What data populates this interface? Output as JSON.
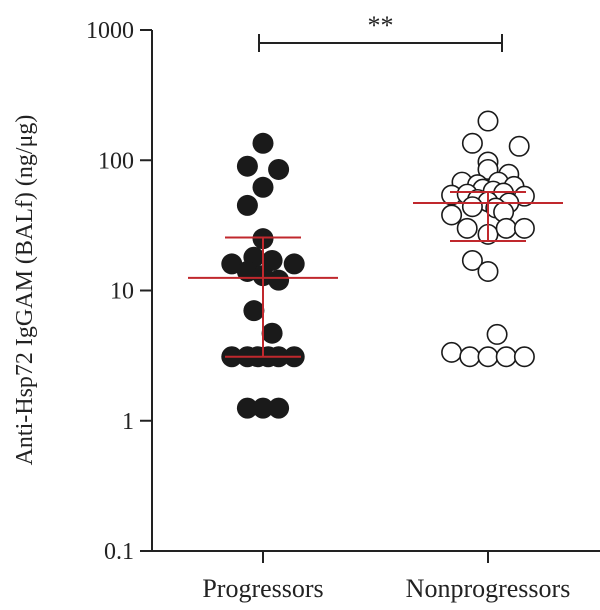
{
  "chart_data": {
    "type": "scatter",
    "ylabel": "Anti-Hsp72 IgGAM (BALf) (ng/μg)",
    "yscale": "log",
    "ylim": [
      0.1,
      1000
    ],
    "yticks": [
      {
        "value": 0.1,
        "label": "0.1"
      },
      {
        "value": 1,
        "label": "1"
      },
      {
        "value": 10,
        "label": "10"
      },
      {
        "value": 100,
        "label": "100"
      },
      {
        "value": 1000,
        "label": "1000"
      }
    ],
    "categories": [
      "Progressors",
      "Nonprogressors"
    ],
    "significance": "**",
    "summary_line_color": "#c0282d",
    "series": [
      {
        "name": "Progressors",
        "marker": "filled",
        "color": "#1a1a1a",
        "median": 12.5,
        "iqr": [
          3.1,
          25.5
        ],
        "points": [
          {
            "offset": 0.0,
            "value": 135
          },
          {
            "offset": -0.6,
            "value": 90
          },
          {
            "offset": 0.6,
            "value": 85
          },
          {
            "offset": 0.0,
            "value": 62
          },
          {
            "offset": -0.6,
            "value": 45
          },
          {
            "offset": 0.0,
            "value": 25
          },
          {
            "offset": -0.35,
            "value": 18
          },
          {
            "offset": 0.35,
            "value": 17
          },
          {
            "offset": -1.2,
            "value": 16
          },
          {
            "offset": 1.2,
            "value": 16
          },
          {
            "offset": -0.6,
            "value": 14
          },
          {
            "offset": 0.0,
            "value": 13
          },
          {
            "offset": 0.6,
            "value": 12
          },
          {
            "offset": -0.35,
            "value": 7
          },
          {
            "offset": 0.35,
            "value": 4.7
          },
          {
            "offset": -1.2,
            "value": 3.1
          },
          {
            "offset": -0.6,
            "value": 3.1
          },
          {
            "offset": -0.2,
            "value": 3.1
          },
          {
            "offset": 0.2,
            "value": 3.1
          },
          {
            "offset": 0.6,
            "value": 3.1
          },
          {
            "offset": 1.2,
            "value": 3.1
          },
          {
            "offset": -0.6,
            "value": 1.25
          },
          {
            "offset": 0.0,
            "value": 1.25
          },
          {
            "offset": 0.6,
            "value": 1.25
          }
        ]
      },
      {
        "name": "Nonprogressors",
        "marker": "open",
        "color": "#1a1a1a",
        "median": 47,
        "iqr": [
          24,
          57
        ],
        "points": [
          {
            "offset": 0.0,
            "value": 200
          },
          {
            "offset": -0.6,
            "value": 135
          },
          {
            "offset": 1.2,
            "value": 128
          },
          {
            "offset": 0.0,
            "value": 97
          },
          {
            "offset": 0.0,
            "value": 85
          },
          {
            "offset": 0.8,
            "value": 78
          },
          {
            "offset": -1.0,
            "value": 68
          },
          {
            "offset": 0.4,
            "value": 68
          },
          {
            "offset": -0.4,
            "value": 65
          },
          {
            "offset": 1.0,
            "value": 63
          },
          {
            "offset": -0.2,
            "value": 60
          },
          {
            "offset": 0.2,
            "value": 58
          },
          {
            "offset": 0.6,
            "value": 56
          },
          {
            "offset": -1.4,
            "value": 54
          },
          {
            "offset": -0.8,
            "value": 55
          },
          {
            "offset": 1.4,
            "value": 53
          },
          {
            "offset": -0.4,
            "value": 50
          },
          {
            "offset": 0.0,
            "value": 48
          },
          {
            "offset": 0.8,
            "value": 47
          },
          {
            "offset": -0.6,
            "value": 44
          },
          {
            "offset": 0.3,
            "value": 43
          },
          {
            "offset": -1.4,
            "value": 38
          },
          {
            "offset": 0.6,
            "value": 40
          },
          {
            "offset": -0.8,
            "value": 30
          },
          {
            "offset": 0.0,
            "value": 27
          },
          {
            "offset": 0.7,
            "value": 30
          },
          {
            "offset": 1.4,
            "value": 30
          },
          {
            "offset": -0.6,
            "value": 17
          },
          {
            "offset": 0.0,
            "value": 14
          },
          {
            "offset": 0.35,
            "value": 4.6
          },
          {
            "offset": -1.4,
            "value": 3.35
          },
          {
            "offset": -0.7,
            "value": 3.1
          },
          {
            "offset": 0.0,
            "value": 3.1
          },
          {
            "offset": 0.7,
            "value": 3.1
          },
          {
            "offset": 1.4,
            "value": 3.1
          }
        ]
      }
    ]
  }
}
